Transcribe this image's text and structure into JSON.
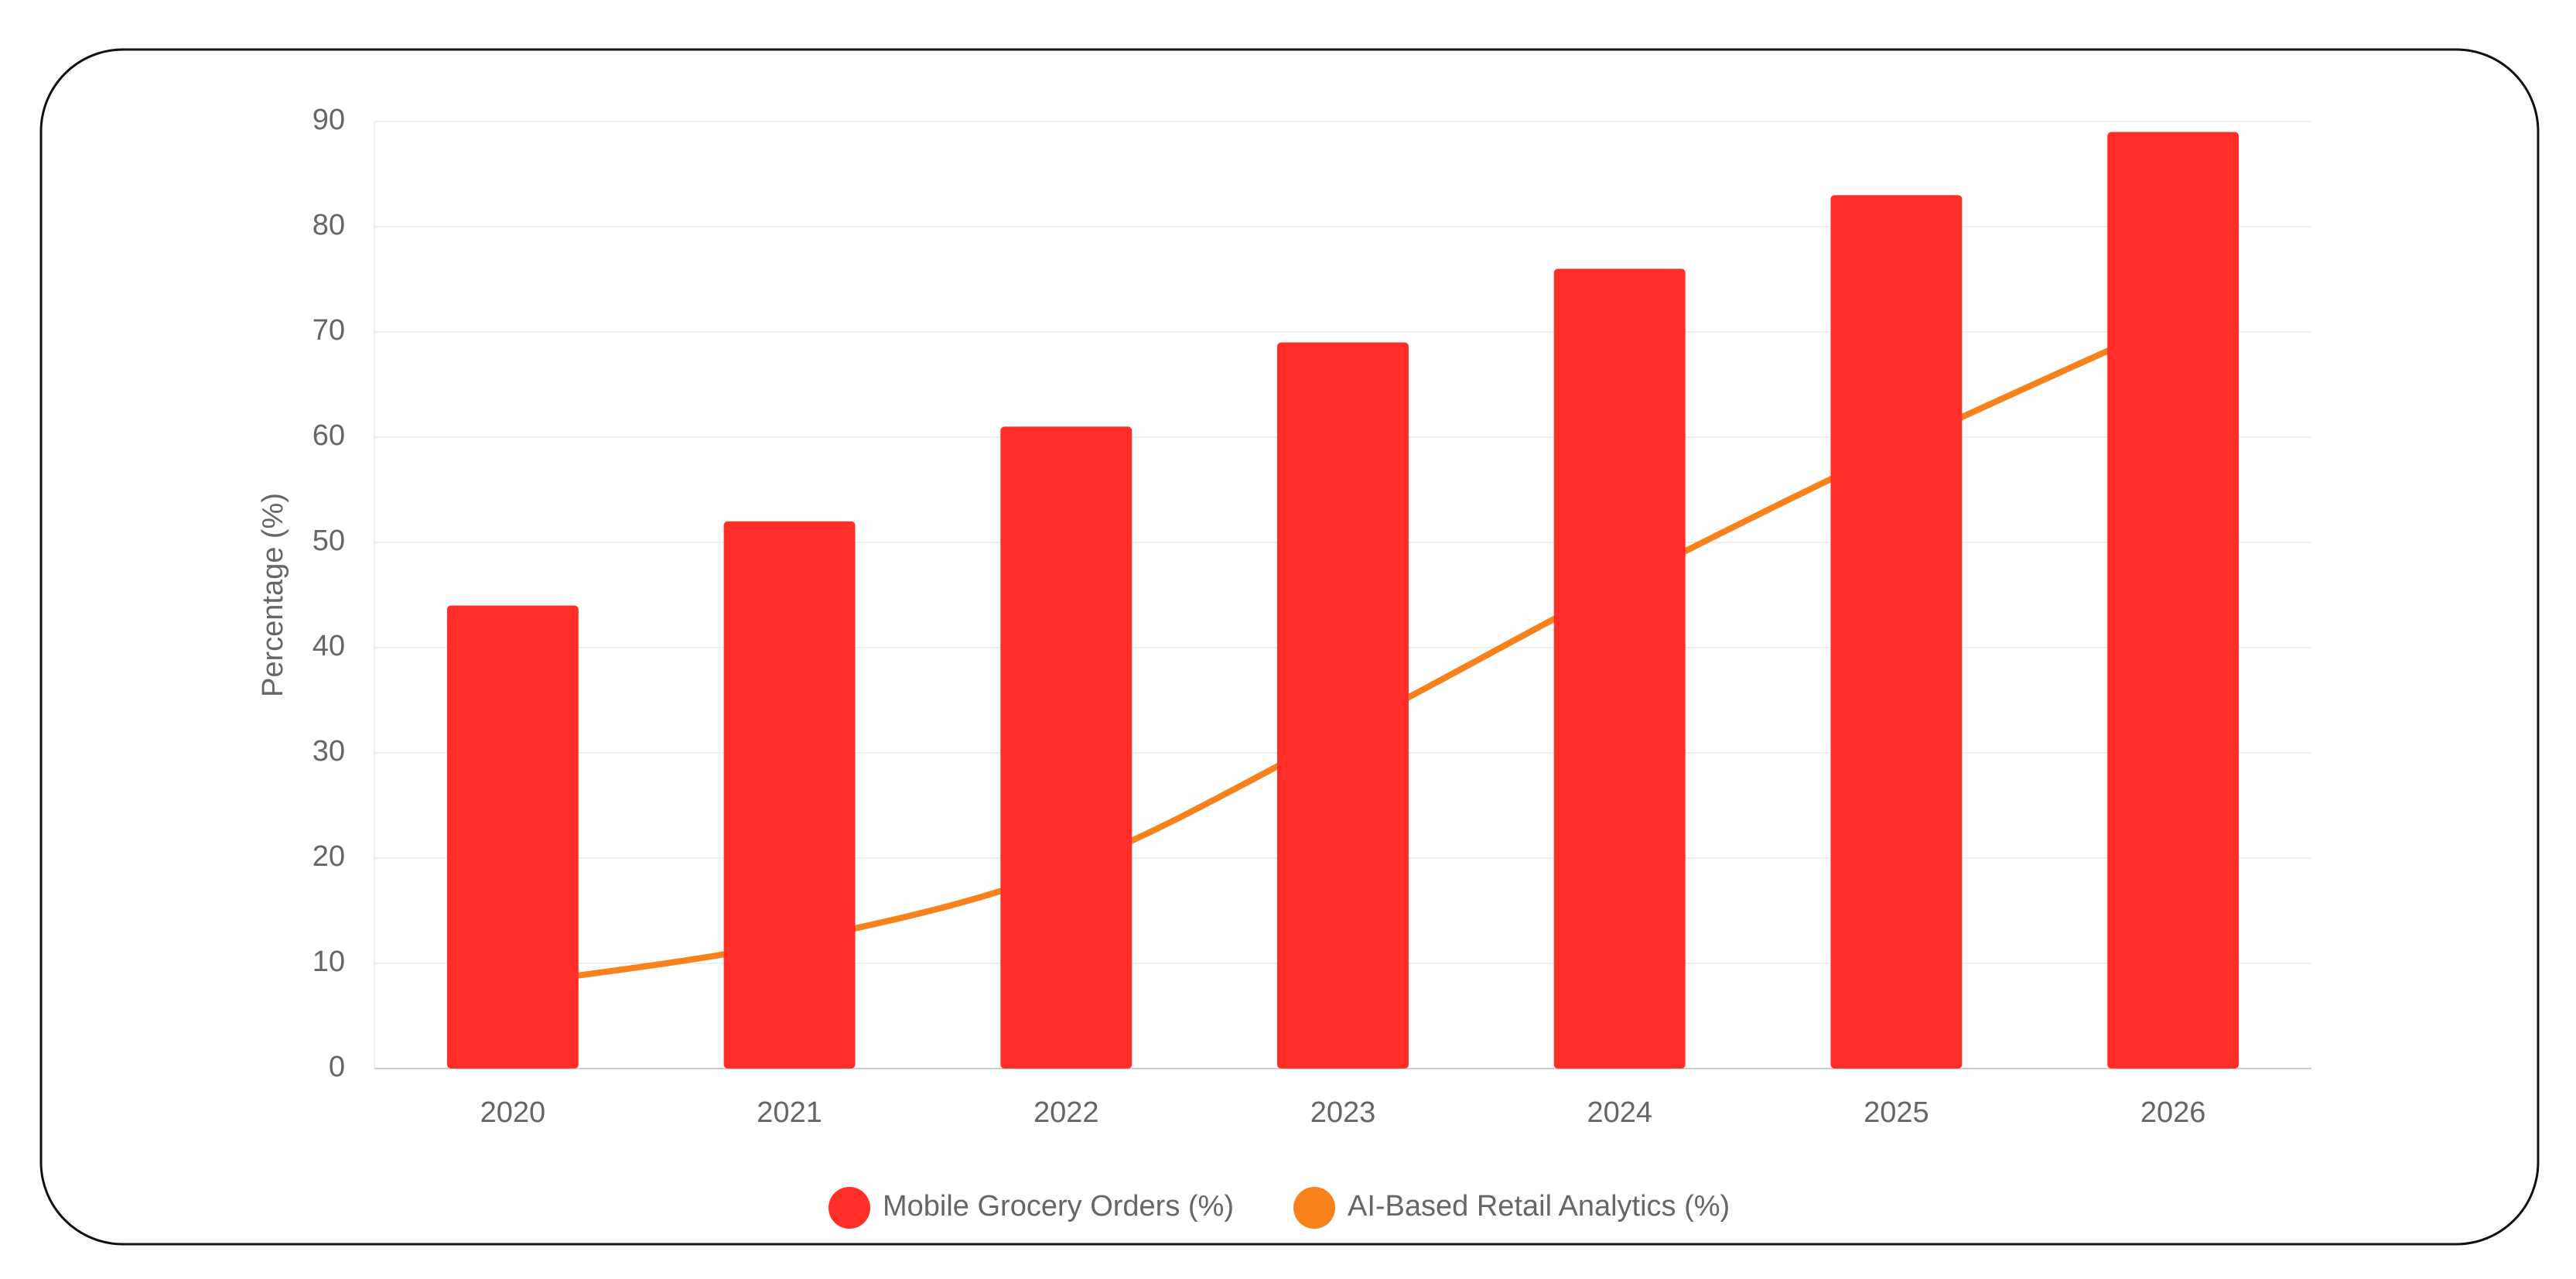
{
  "chart_data": {
    "type": "bar-line",
    "y_label": "Percentage (%)",
    "categories": [
      "2020",
      "2021",
      "2022",
      "2023",
      "2024",
      "2025",
      "2026"
    ],
    "series": [
      {
        "name": "Mobile Grocery Orders (%)",
        "type": "bar",
        "color": "#ff2e27",
        "values": [
          44,
          52,
          61,
          69,
          76,
          83,
          89
        ]
      },
      {
        "name": "AI-Based Retail Analytics (%)",
        "type": "line",
        "color": "#f7821b",
        "values": [
          8,
          12,
          19,
          32,
          46,
          59,
          71
        ]
      }
    ],
    "ylim": [
      0,
      90
    ],
    "yticks": [
      0,
      10,
      20,
      30,
      40,
      50,
      60,
      70,
      80,
      90
    ],
    "grid": true
  }
}
